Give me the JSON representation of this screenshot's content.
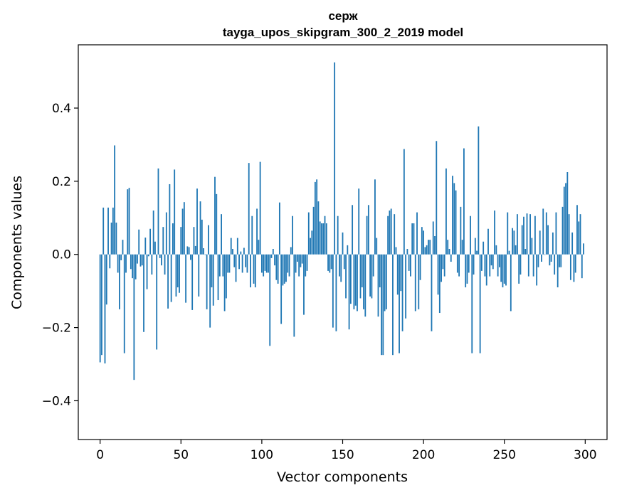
{
  "chart_data": {
    "type": "bar",
    "title_lines": [
      "серж",
      "tayga_upos_skipgram_300_2_2019 model"
    ],
    "xlabel": "Vector components",
    "ylabel": "Components values",
    "xlim": [
      -13.5,
      313.5
    ],
    "ylim": [
      -0.506,
      0.573
    ],
    "xticks": [
      0,
      50,
      100,
      150,
      200,
      250,
      300
    ],
    "xtick_labels": [
      "0",
      "50",
      "100",
      "150",
      "200",
      "250",
      "300"
    ],
    "yticks": [
      -0.4,
      -0.2,
      0.0,
      0.2,
      0.4
    ],
    "ytick_labels": [
      "−0.4",
      "−0.2",
      "0.0",
      "0.2",
      "0.4"
    ],
    "bar_color": "#1f77b4",
    "values": [
      -0.295,
      -0.275,
      0.128,
      -0.298,
      -0.137,
      0.128,
      -0.038,
      0.087,
      0.128,
      0.298,
      0.087,
      -0.05,
      -0.15,
      -0.016,
      0.04,
      -0.27,
      -0.05,
      0.178,
      0.182,
      -0.04,
      -0.065,
      -0.343,
      -0.068,
      -0.025,
      0.068,
      -0.033,
      -0.03,
      -0.212,
      0.046,
      -0.095,
      -0.005,
      0.07,
      -0.055,
      0.12,
      0.035,
      -0.26,
      0.235,
      -0.01,
      -0.03,
      0.075,
      -0.055,
      0.115,
      -0.148,
      0.192,
      -0.13,
      0.085,
      0.232,
      -0.115,
      -0.09,
      -0.105,
      0.075,
      0.125,
      0.143,
      -0.132,
      0.022,
      0.02,
      -0.015,
      -0.152,
      0.075,
      0.023,
      0.18,
      -0.115,
      0.145,
      0.095,
      0.017,
      0.0,
      -0.15,
      0.08,
      -0.2,
      -0.09,
      -0.14,
      0.212,
      0.165,
      -0.125,
      -0.06,
      0.11,
      -0.06,
      -0.155,
      -0.12,
      -0.05,
      -0.05,
      0.045,
      0.015,
      -0.035,
      -0.075,
      0.045,
      -0.04,
      0.008,
      -0.05,
      0.018,
      -0.035,
      -0.05,
      0.25,
      -0.09,
      0.105,
      -0.08,
      -0.09,
      0.125,
      0.04,
      0.253,
      -0.05,
      -0.06,
      -0.045,
      -0.05,
      -0.05,
      -0.25,
      -0.01,
      0.015,
      -0.03,
      -0.07,
      -0.08,
      0.142,
      -0.19,
      -0.085,
      -0.08,
      -0.075,
      -0.05,
      -0.06,
      0.02,
      0.105,
      -0.225,
      -0.05,
      -0.02,
      -0.06,
      -0.035,
      -0.025,
      -0.165,
      -0.06,
      -0.045,
      0.115,
      0.045,
      0.065,
      0.13,
      0.198,
      0.205,
      0.145,
      0.09,
      0.085,
      0.085,
      0.105,
      0.085,
      -0.045,
      -0.05,
      -0.04,
      -0.2,
      0.525,
      -0.21,
      0.105,
      -0.06,
      -0.075,
      0.06,
      -0.04,
      -0.12,
      0.025,
      -0.205,
      -0.135,
      0.135,
      -0.15,
      -0.14,
      -0.155,
      0.18,
      -0.12,
      -0.09,
      -0.15,
      -0.17,
      0.105,
      0.135,
      -0.115,
      -0.12,
      -0.06,
      0.205,
      0.045,
      -0.17,
      -0.09,
      -0.275,
      -0.275,
      -0.155,
      -0.15,
      0.105,
      0.12,
      0.125,
      -0.275,
      0.11,
      0.02,
      -0.11,
      -0.27,
      -0.1,
      -0.21,
      0.288,
      -0.175,
      0.015,
      -0.045,
      -0.06,
      0.085,
      0.085,
      -0.155,
      0.115,
      -0.15,
      -0.07,
      0.075,
      0.065,
      0.02,
      0.025,
      0.04,
      0.04,
      -0.21,
      0.09,
      0.05,
      0.31,
      -0.11,
      -0.16,
      -0.075,
      -0.04,
      -0.06,
      0.235,
      0.04,
      0.015,
      -0.02,
      0.215,
      0.195,
      0.175,
      -0.05,
      -0.06,
      0.13,
      0.04,
      0.29,
      -0.09,
      -0.08,
      -0.05,
      0.105,
      -0.27,
      -0.055,
      0.045,
      0.01,
      0.35,
      -0.27,
      -0.045,
      0.035,
      -0.06,
      -0.085,
      0.07,
      -0.06,
      -0.03,
      -0.04,
      0.12,
      0.025,
      -0.06,
      -0.035,
      -0.075,
      -0.09,
      -0.08,
      -0.085,
      0.115,
      0.01,
      -0.155,
      0.072,
      0.065,
      0.025,
      0.11,
      -0.08,
      -0.055,
      0.08,
      0.103,
      0.015,
      0.112,
      -0.06,
      0.11,
      0.045,
      -0.06,
      0.105,
      -0.085,
      -0.035,
      0.065,
      -0.02,
      0.125,
      0.0,
      0.115,
      0.08,
      -0.03,
      -0.02,
      0.06,
      -0.055,
      0.115,
      -0.09,
      -0.035,
      -0.035,
      0.13,
      0.185,
      0.195,
      0.225,
      0.11,
      -0.07,
      0.06,
      -0.075,
      -0.05,
      0.135,
      0.09,
      0.11,
      -0.065,
      0.03
    ]
  }
}
